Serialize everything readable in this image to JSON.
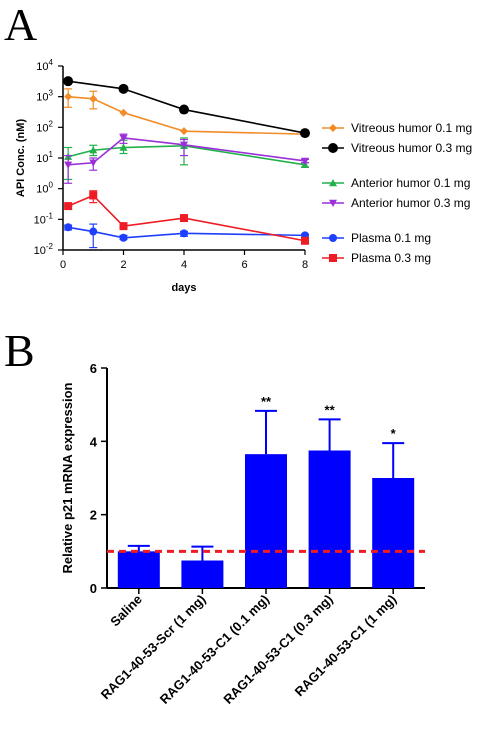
{
  "panel_a_label": "A",
  "panel_b_label": "B",
  "chart_data": [
    {
      "type": "line",
      "y_scale": "log",
      "xlabel": "days",
      "ylabel": "API Conc. (nM)",
      "xlim": [
        0,
        8
      ],
      "ylim": [
        0.01,
        10000
      ],
      "xticks": [
        "0",
        "2",
        "4",
        "6",
        "8"
      ],
      "yticks": [
        {
          "base": "10",
          "exp": "-2"
        },
        {
          "base": "10",
          "exp": "-1"
        },
        {
          "base": "10",
          "exp": "0"
        },
        {
          "base": "10",
          "exp": "1"
        },
        {
          "base": "10",
          "exp": "2"
        },
        {
          "base": "10",
          "exp": "3"
        },
        {
          "base": "10",
          "exp": "4"
        }
      ],
      "legend_position": "right",
      "series": [
        {
          "name": "Vitreous humor 0.1 mg",
          "color": "#f28c28",
          "marker": "diamond",
          "x": [
            0.17,
            1,
            2,
            4,
            8
          ],
          "y": [
            1000,
            850,
            300,
            75,
            60
          ],
          "err_low": [
            450,
            400,
            0,
            0,
            0
          ],
          "err_high": [
            1800,
            1500,
            0,
            0,
            0
          ],
          "legend_group": 0
        },
        {
          "name": "Vitreous humor 0.3 mg",
          "color": "#000000",
          "marker": "circle",
          "x": [
            0.17,
            2,
            4,
            8
          ],
          "y": [
            3200,
            1800,
            380,
            65
          ],
          "err_low": [
            0,
            0,
            0,
            0
          ],
          "err_high": [
            0,
            0,
            0,
            0
          ],
          "legend_group": 0
        },
        {
          "name": "Anterior humor 0.1 mg",
          "color": "#22b14c",
          "marker": "triangle-up",
          "x": [
            0.17,
            1,
            2,
            4,
            8
          ],
          "y": [
            11,
            18,
            22,
            25,
            6
          ],
          "err_low": [
            2,
            12,
            14,
            6,
            5
          ],
          "err_high": [
            22,
            26,
            38,
            45,
            7
          ],
          "legend_group": 1
        },
        {
          "name": "Anterior humor 0.3 mg",
          "color": "#9b30d9",
          "marker": "triangle-down",
          "x": [
            0.17,
            1,
            2,
            4,
            8
          ],
          "y": [
            6,
            7,
            45,
            27,
            8
          ],
          "err_low": [
            1.5,
            4,
            30,
            12,
            7
          ],
          "err_high": [
            12,
            10,
            60,
            40,
            9
          ],
          "legend_group": 1
        },
        {
          "name": "Plasma 0.1 mg",
          "color": "#1f3fff",
          "marker": "circle",
          "x": [
            0.17,
            1,
            2,
            4,
            8
          ],
          "y": [
            0.055,
            0.04,
            0.025,
            0.035,
            0.03
          ],
          "err_low": [
            0.045,
            0.012,
            0.022,
            0.028,
            0.025
          ],
          "err_high": [
            0.065,
            0.07,
            0.03,
            0.04,
            0.033
          ],
          "legend_group": 2
        },
        {
          "name": "Plasma 0.3 mg",
          "color": "#ee1c24",
          "marker": "square",
          "x": [
            0.17,
            1,
            2,
            4,
            8
          ],
          "y": [
            0.27,
            0.6,
            0.06,
            0.11,
            0.02
          ],
          "err_low": [
            0.27,
            0.35,
            0.06,
            0.11,
            0.02
          ],
          "err_high": [
            0.27,
            0.85,
            0.06,
            0.11,
            0.02
          ],
          "legend_group": 2
        }
      ]
    },
    {
      "type": "bar",
      "xlabel": "",
      "ylabel": "Relative p21 mRNA expression",
      "ylim": [
        0,
        6
      ],
      "yticks": [
        "0",
        "2",
        "4",
        "6"
      ],
      "categories": [
        "Saline",
        "RAG1-40-53-Scr (1 mg)",
        "RAG1-40-53-C1 (0.1 mg)",
        "RAG1-40-53-C1 (0.3 mg)",
        "RAG1-40-53-C1 (1 mg)"
      ],
      "values": [
        1.0,
        0.75,
        3.65,
        3.75,
        3.0
      ],
      "errors": [
        0.15,
        0.38,
        1.18,
        0.85,
        0.95
      ],
      "significance": [
        "",
        "",
        "**",
        "**",
        "*"
      ],
      "bar_color": "#0000ff",
      "reference_line": {
        "value": 1,
        "color": "#ee1c24",
        "style": "dashed"
      }
    }
  ]
}
